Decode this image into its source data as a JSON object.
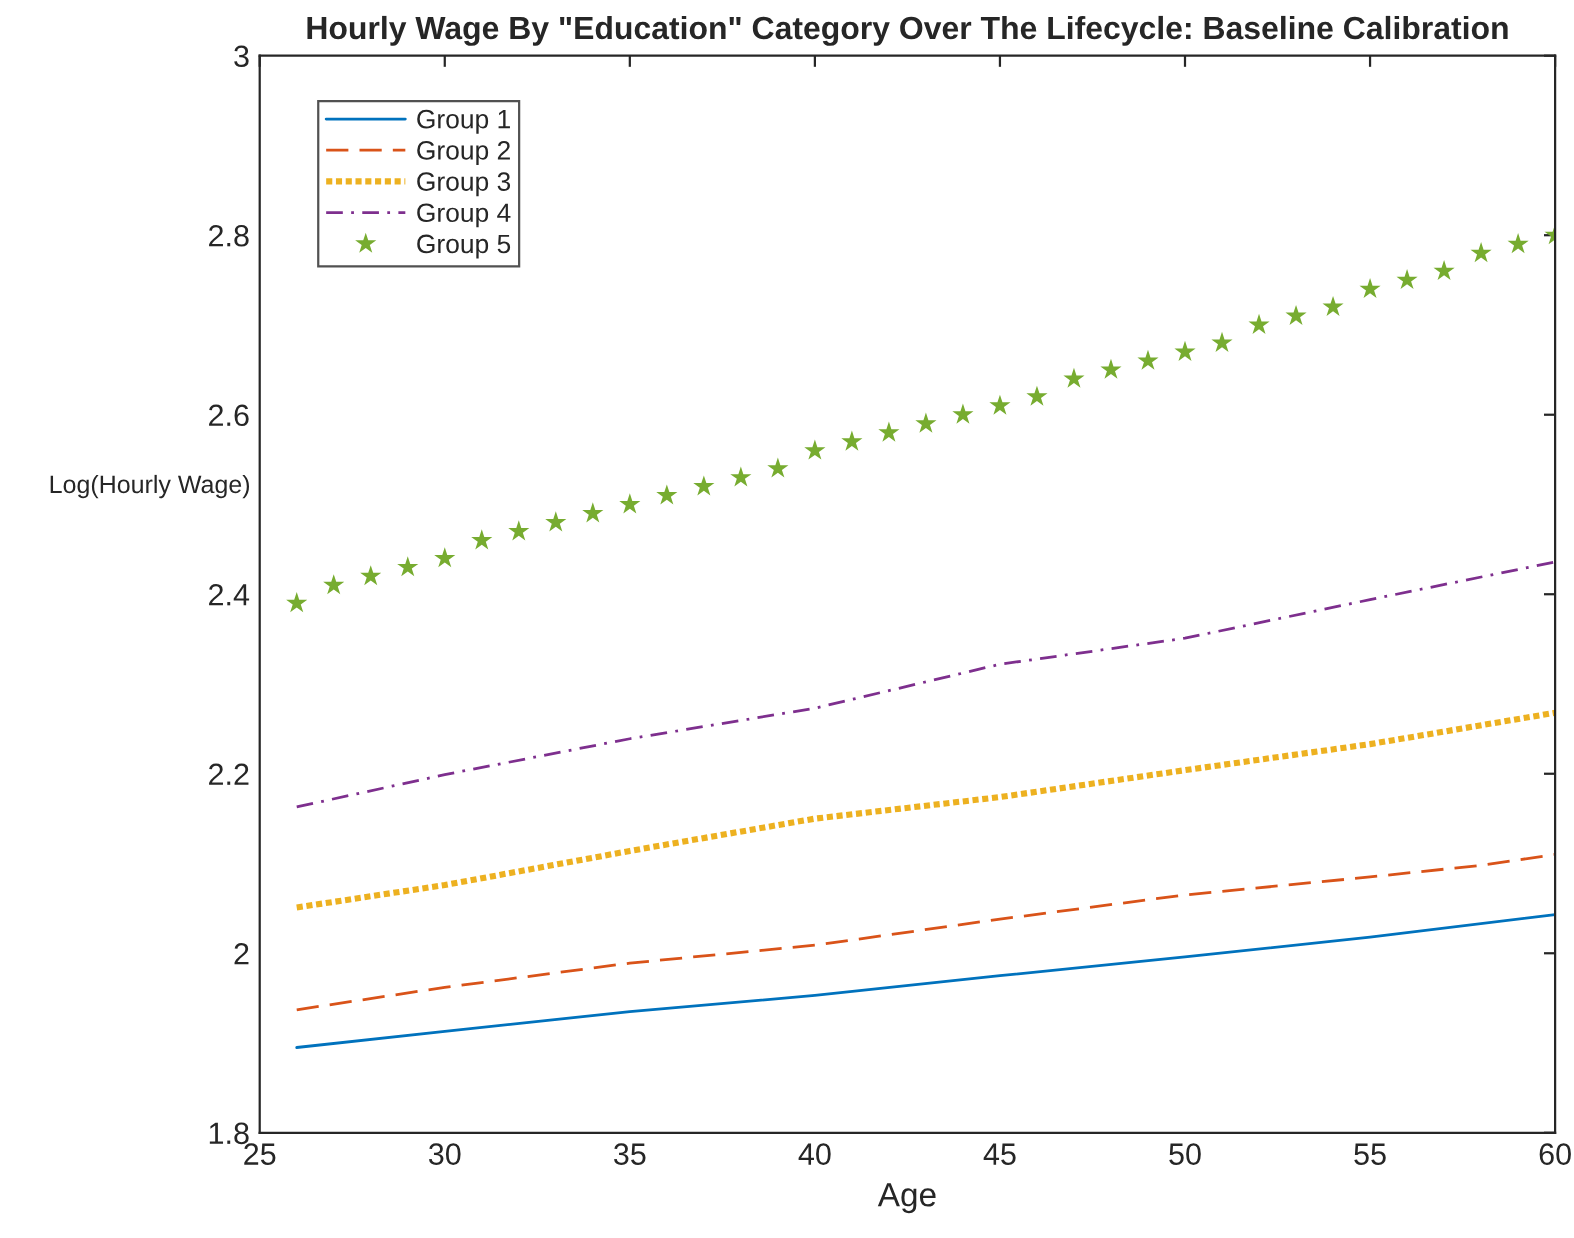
{
  "chart_data": {
    "type": "line",
    "title": "Hourly Wage By \"Education\" Category Over The Lifecycle: Baseline Calibration",
    "xlabel": "Age",
    "ylabel": "Log(Hourly Wage)",
    "xlim": [
      25,
      60
    ],
    "xticks": [
      25,
      30,
      35,
      40,
      45,
      50,
      55,
      60
    ],
    "ylim": [
      1.8,
      3
    ],
    "yticks": [
      1.8,
      2,
      2.2,
      2.4,
      2.6,
      2.8,
      3
    ],
    "grid": false,
    "legend": "top left",
    "series": [
      {
        "name": "Group 1",
        "color": "#0072bd",
        "line_style": "solid",
        "marker": "none",
        "x": [
          26,
          30,
          35,
          40,
          45,
          50,
          55,
          60
        ],
        "values": [
          1.895,
          1.913,
          1.935,
          1.953,
          1.975,
          1.996,
          2.018,
          2.043
        ]
      },
      {
        "name": "Group 2",
        "color": "#d95319",
        "line_style": "dashed",
        "marker": "none",
        "x": [
          26,
          30,
          35,
          40,
          45,
          50,
          55,
          58,
          60
        ],
        "values": [
          1.937,
          1.962,
          1.989,
          2.009,
          2.038,
          2.065,
          2.085,
          2.098,
          2.11
        ]
      },
      {
        "name": "Group 3",
        "color": "#edb120",
        "line_style": "dotted",
        "marker": "none",
        "x": [
          26,
          30,
          35,
          40,
          45,
          50,
          55,
          60
        ],
        "values": [
          2.051,
          2.076,
          2.114,
          2.15,
          2.174,
          2.204,
          2.233,
          2.268
        ]
      },
      {
        "name": "Group 4",
        "color": "#7e2f8e",
        "line_style": "dashdot",
        "marker": "none",
        "x": [
          26,
          30,
          35,
          40,
          45,
          50,
          55,
          60
        ],
        "values": [
          2.163,
          2.199,
          2.239,
          2.273,
          2.322,
          2.351,
          2.394,
          2.436
        ]
      },
      {
        "name": "Group 5",
        "color": "#77ac30",
        "type": "scatter",
        "marker": "star",
        "x": [
          26,
          27,
          28,
          29,
          30,
          31,
          32,
          33,
          34,
          35,
          36,
          37,
          38,
          39,
          40,
          41,
          42,
          43,
          44,
          45,
          46,
          47,
          48,
          49,
          50,
          51,
          52,
          53,
          54,
          55,
          56,
          57,
          58,
          59,
          60
        ],
        "values": [
          2.39,
          2.41,
          2.42,
          2.43,
          2.44,
          2.46,
          2.47,
          2.48,
          2.49,
          2.5,
          2.51,
          2.52,
          2.53,
          2.54,
          2.56,
          2.57,
          2.58,
          2.59,
          2.6,
          2.61,
          2.62,
          2.64,
          2.65,
          2.66,
          2.67,
          2.68,
          2.7,
          2.71,
          2.72,
          2.74,
          2.75,
          2.76,
          2.78,
          2.79,
          2.8
        ]
      }
    ]
  }
}
